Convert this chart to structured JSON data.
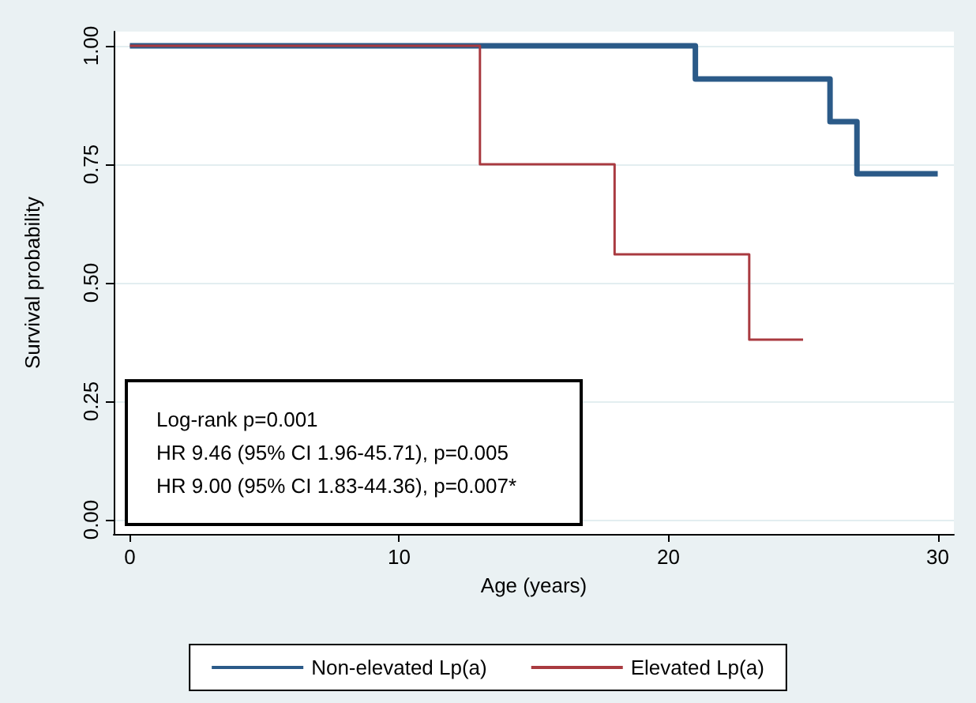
{
  "chart_data": {
    "type": "step",
    "xlabel": "Age (years)",
    "ylabel": "Survival probability",
    "xlim": [
      -0.6,
      30.6
    ],
    "xticks": [
      0,
      10,
      20,
      30
    ],
    "ylim": [
      -0.03,
      1.03
    ],
    "yticks": [
      {
        "value": 0,
        "label": "0.00"
      },
      {
        "value": 0.25,
        "label": "0.25"
      },
      {
        "value": 0.5,
        "label": "0.50"
      },
      {
        "value": 0.75,
        "label": "0.75"
      },
      {
        "value": 1,
        "label": "1.00"
      }
    ],
    "series": [
      {
        "name": "Non-elevated Lp(a)",
        "color": "#2b5a88",
        "x": [
          0,
          21,
          26,
          27,
          30
        ],
        "values": [
          1,
          0.93,
          0.84,
          0.73,
          0.73
        ]
      },
      {
        "name": "Elevated Lp(a)",
        "color": "#a93a40",
        "x": [
          0,
          13,
          18,
          23,
          25
        ],
        "values": [
          1,
          0.75,
          0.56,
          0.38,
          0.38
        ]
      }
    ],
    "annotations": [
      "Log-rank p=0.001",
      "HR 9.46 (95% CI 1.96-45.71), p=0.005",
      "HR 9.00 (95% CI 1.83-44.36), p=0.007*"
    ],
    "grid": "y",
    "legend": "bottom",
    "marker": "none",
    "line_style": "solid"
  }
}
